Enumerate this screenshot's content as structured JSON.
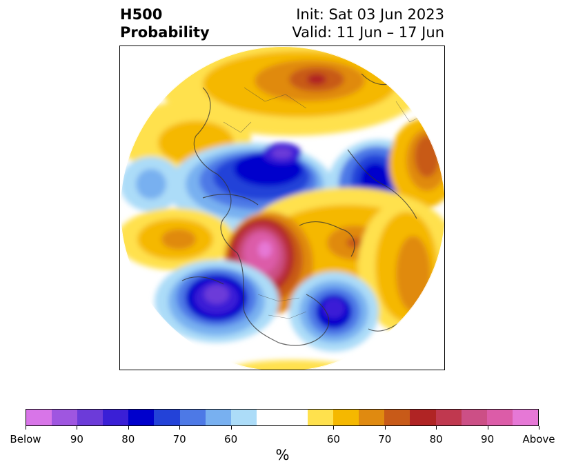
{
  "header": {
    "title_line1": "H500",
    "title_line2": "Probability",
    "init_text": "Init: Sat 03 Jun 2023",
    "valid_text": "Valid: 11 Jun – 17 Jun"
  },
  "colorbar": {
    "unit": "%",
    "colors": [
      "#d875e8",
      "#9f56e0",
      "#6c3bd9",
      "#3a1fd6",
      "#0000cc",
      "#2342d8",
      "#4d79e6",
      "#78b0f0",
      "#acdcf8",
      "#ffffff",
      "#ffffff",
      "#ffe14d",
      "#f5b800",
      "#e08a10",
      "#c85a18",
      "#b02424",
      "#c0384f",
      "#cc4f86",
      "#dc5ca8",
      "#e678d6"
    ],
    "tick_labels": [
      "Below",
      "90",
      "80",
      "70",
      "60",
      "60",
      "70",
      "80",
      "90",
      "Above"
    ]
  }
}
